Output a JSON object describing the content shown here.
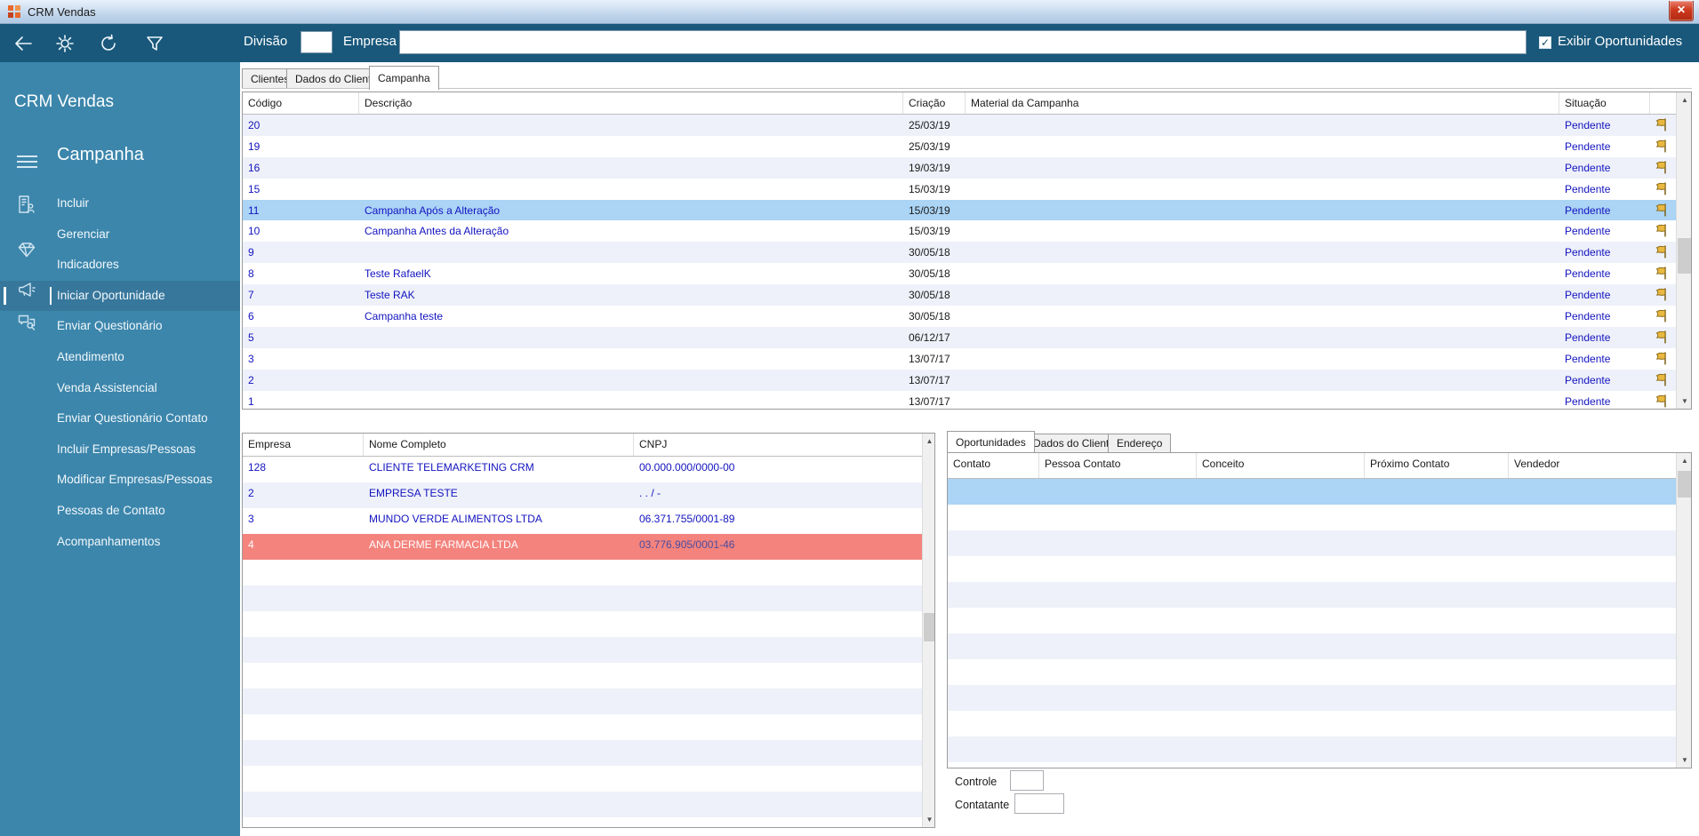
{
  "window": {
    "title": "CRM Vendas",
    "close_glyph": "✕"
  },
  "toolbar": {
    "division_label": "Divisão",
    "division_value": "",
    "company_label": "Empresa",
    "company_value": "",
    "show_opportunities_label": "Exibir Oportunidades",
    "show_opportunities_checked": true,
    "check_glyph": "✓"
  },
  "sidebar": {
    "app_title": "CRM Vendas",
    "section_title": "Campanha",
    "items": [
      {
        "label": "Incluir",
        "icon": "org-icon"
      },
      {
        "label": "Gerenciar"
      },
      {
        "label": "Indicadores",
        "icon": "diamond-icon"
      },
      {
        "label": "Iniciar Oportunidade",
        "icon": "megaphone-icon",
        "selected": true
      },
      {
        "label": "Enviar Questionário",
        "icon": "chat-search-icon"
      },
      {
        "label": "Atendimento"
      },
      {
        "label": "Venda Assistencial"
      },
      {
        "label": "Enviar Questionário Contato"
      },
      {
        "label": "Incluir Empresas/Pessoas"
      },
      {
        "label": "Modificar Empresas/Pessoas"
      },
      {
        "label": "Pessoas de Contato"
      },
      {
        "label": "Acompanhamentos"
      }
    ]
  },
  "main_tabs": [
    {
      "label": "Clientes"
    },
    {
      "label": "Dados do Cliente"
    },
    {
      "label": "Campanha",
      "active": true
    }
  ],
  "campaign_table": {
    "columns": [
      "Código",
      "Descrição",
      "Criação",
      "Material da Campanha",
      "Situação"
    ],
    "rows": [
      {
        "code": "20",
        "description": "",
        "created": "25/03/19",
        "material": "",
        "status": "Pendente"
      },
      {
        "code": "19",
        "description": "",
        "created": "25/03/19",
        "material": "",
        "status": "Pendente"
      },
      {
        "code": "16",
        "description": "",
        "created": "19/03/19",
        "material": "",
        "status": "Pendente"
      },
      {
        "code": "15",
        "description": "",
        "created": "15/03/19",
        "material": "",
        "status": "Pendente"
      },
      {
        "code": "11",
        "description": "Campanha Após a Alteração",
        "created": "15/03/19",
        "material": "",
        "status": "Pendente",
        "selected": true
      },
      {
        "code": "10",
        "description": "Campanha Antes da Alteração",
        "created": "15/03/19",
        "material": "",
        "status": "Pendente"
      },
      {
        "code": "9",
        "description": "",
        "created": "30/05/18",
        "material": "",
        "status": "Pendente"
      },
      {
        "code": "8",
        "description": "Teste RafaelK",
        "created": "30/05/18",
        "material": "",
        "status": "Pendente"
      },
      {
        "code": "7",
        "description": "Teste RAK",
        "created": "30/05/18",
        "material": "",
        "status": "Pendente"
      },
      {
        "code": "6",
        "description": "Campanha teste",
        "created": "30/05/18",
        "material": "",
        "status": "Pendente"
      },
      {
        "code": "5",
        "description": "",
        "created": "06/12/17",
        "material": "",
        "status": "Pendente"
      },
      {
        "code": "3",
        "description": "",
        "created": "13/07/17",
        "material": "",
        "status": "Pendente"
      },
      {
        "code": "2",
        "description": "",
        "created": "13/07/17",
        "material": "",
        "status": "Pendente"
      },
      {
        "code": "1",
        "description": "",
        "created": "13/07/17",
        "material": "",
        "status": "Pendente"
      }
    ]
  },
  "company_table": {
    "columns": [
      "Empresa",
      "Nome Completo",
      "CNPJ"
    ],
    "rows": [
      {
        "code": "128",
        "name": "CLIENTE TELEMARKETING CRM",
        "cnpj": "00.000.000/0000-00"
      },
      {
        "code": "2",
        "name": "EMPRESA TESTE",
        "cnpj": " .   .   /    -"
      },
      {
        "code": "3",
        "name": "MUNDO VERDE ALIMENTOS LTDA",
        "cnpj": "06.371.755/0001-89"
      },
      {
        "code": "4",
        "name": "ANA DERME FARMACIA LTDA",
        "cnpj": "03.776.905/0001-46",
        "alert": true
      }
    ],
    "empty_rows": 11
  },
  "opportunities_panel": {
    "tabs": [
      {
        "label": "Oportunidades",
        "active": true
      },
      {
        "label": "Dados do Cliente"
      },
      {
        "label": "Endereço"
      }
    ],
    "columns": [
      "Contato",
      "Pessoa Contato",
      "Conceito",
      "Próximo Contato",
      "Vendedor"
    ],
    "empty_rows": 11,
    "controle_label": "Controle",
    "controle_value": "",
    "contatante_label": "Contatante",
    "contatante_value": ""
  },
  "colors": {
    "toolbar": "#19587B",
    "sidebar": "#3C86AC",
    "selected_row": "#ABD4F5",
    "alert_row": "#F4837D",
    "alt_row": "#EEF1F9",
    "record_text": "#1313C0",
    "flag": "#E9B840"
  }
}
